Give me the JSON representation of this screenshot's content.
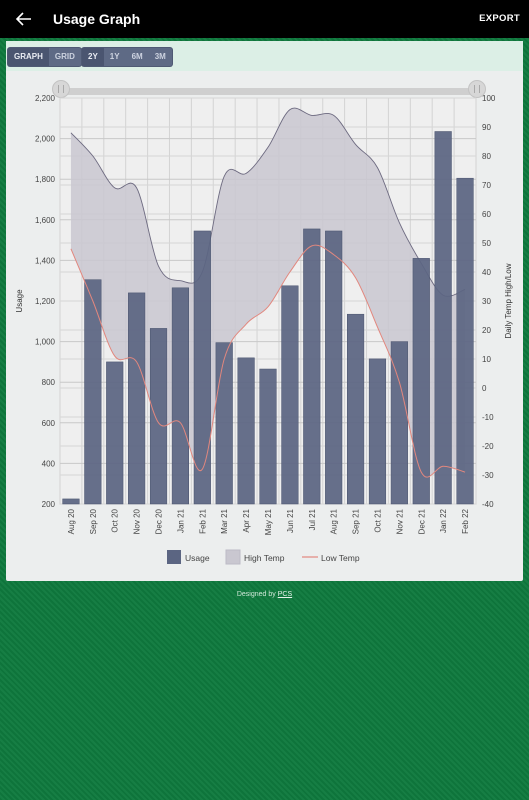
{
  "header": {
    "title": "Usage Graph",
    "export_label": "EXPORT",
    "back_icon": "arrow-left-icon"
  },
  "toolbar": {
    "view_buttons": [
      {
        "label": "GRAPH",
        "active": true
      },
      {
        "label": "GRID",
        "active": false
      }
    ],
    "range_buttons": [
      {
        "label": "2Y",
        "active": true
      },
      {
        "label": "1Y",
        "active": false
      },
      {
        "label": "6M",
        "active": false
      },
      {
        "label": "3M",
        "active": false
      }
    ]
  },
  "footer": {
    "prefix": "Designed by ",
    "link": "PCS"
  },
  "colors": {
    "usage": "#5b6582",
    "high_temp_fill": "#c9c7d0",
    "high_temp_line": "#6d6a80",
    "low_temp": "#e2877e",
    "background": "#0f7a3e"
  },
  "chart_data": {
    "type": "bar",
    "categories": [
      "Aug 20",
      "Sep 20",
      "Oct 20",
      "Nov 20",
      "Dec 20",
      "Jan 21",
      "Feb 21",
      "Mar 21",
      "Apr 21",
      "May 21",
      "Jun 21",
      "Jul 21",
      "Aug 21",
      "Sep 21",
      "Oct 21",
      "Nov 21",
      "Dec 21",
      "Jan 22",
      "Feb 22"
    ],
    "ylabel": "Usage",
    "ylim": [
      200,
      2200
    ],
    "yticks": [
      "200",
      "400",
      "600",
      "800",
      "1,000",
      "1,200",
      "1,400",
      "1,600",
      "1,800",
      "2,000",
      "2,200"
    ],
    "y2label": "Daily Temp High/Low",
    "y2lim": [
      -40,
      100
    ],
    "y2ticks": [
      "-40",
      "-30",
      "-20",
      "-10",
      "0",
      "10",
      "20",
      "30",
      "40",
      "50",
      "60",
      "70",
      "80",
      "90",
      "100"
    ],
    "series": [
      {
        "name": "Usage",
        "type": "bar",
        "axis": "left",
        "values": [
          225,
          1305,
          900,
          1240,
          1065,
          1265,
          1545,
          995,
          920,
          865,
          1275,
          1555,
          1545,
          1135,
          915,
          1000,
          1410,
          2035,
          1805
        ]
      },
      {
        "name": "High Temp",
        "type": "area",
        "axis": "right",
        "values": [
          88,
          80,
          69,
          69,
          42,
          37,
          40,
          73,
          74,
          83,
          96,
          94,
          94,
          84,
          76,
          57,
          43,
          32,
          34
        ]
      },
      {
        "name": "Low Temp",
        "type": "line",
        "axis": "right",
        "values": [
          48,
          30,
          11,
          9,
          -12,
          -12,
          -28,
          10,
          22,
          28,
          40,
          49,
          46,
          38,
          21,
          2,
          -29,
          -27,
          -29
        ]
      }
    ],
    "grid": true,
    "legend": "bottom-center"
  }
}
